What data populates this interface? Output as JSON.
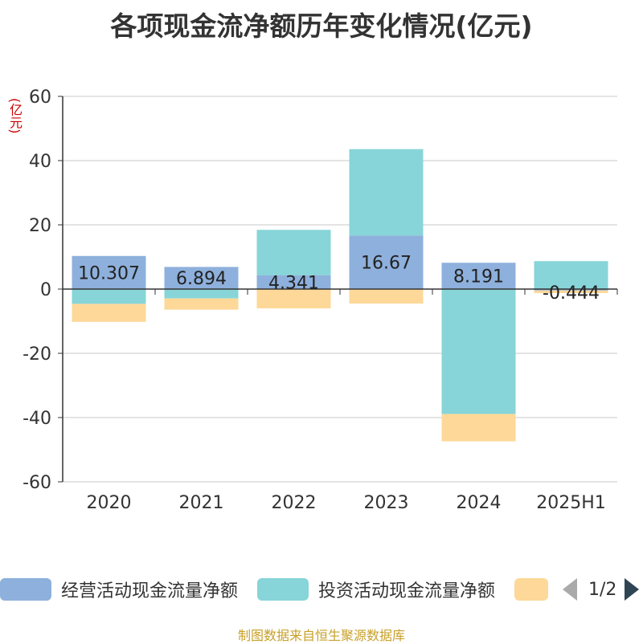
{
  "title": "各项现金流净额历年变化情况(亿元)",
  "y_unit": "(亿元)",
  "source": "制图数据来自恒生聚源数据库",
  "legend": {
    "items": [
      {
        "label": "经营活动现金流量净额",
        "color": "#8eb0dc"
      },
      {
        "label": "投资活动现金流量净额",
        "color": "#87d5d8"
      },
      {
        "label": "",
        "color": "#fdd898"
      }
    ],
    "page": "1/2"
  },
  "chart_data": {
    "type": "bar",
    "stacked": true,
    "categories": [
      "2020",
      "2021",
      "2022",
      "2023",
      "2024",
      "2025H1"
    ],
    "series": [
      {
        "name": "经营活动现金流量净额",
        "color": "#8eb0dc",
        "values": [
          10.307,
          6.894,
          4.341,
          16.67,
          8.191,
          -0.444
        ]
      },
      {
        "name": "投资活动现金流量净额",
        "color": "#87d5d8",
        "values": [
          -4.6,
          -2.9,
          14.1,
          26.9,
          -38.9,
          8.7
        ]
      },
      {
        "name": "",
        "color": "#fdd898",
        "values": [
          -5.6,
          -3.5,
          -6.0,
          -4.5,
          -8.5,
          -0.8
        ]
      }
    ],
    "data_labels": [
      "10.307",
      "6.894",
      "4.341",
      "16.67",
      "8.191",
      "-0.444"
    ],
    "ylim": [
      -60,
      60
    ],
    "yticks": [
      60,
      40,
      20,
      0,
      -20,
      -40,
      -60
    ],
    "grid": true,
    "legend_position": "bottom"
  }
}
